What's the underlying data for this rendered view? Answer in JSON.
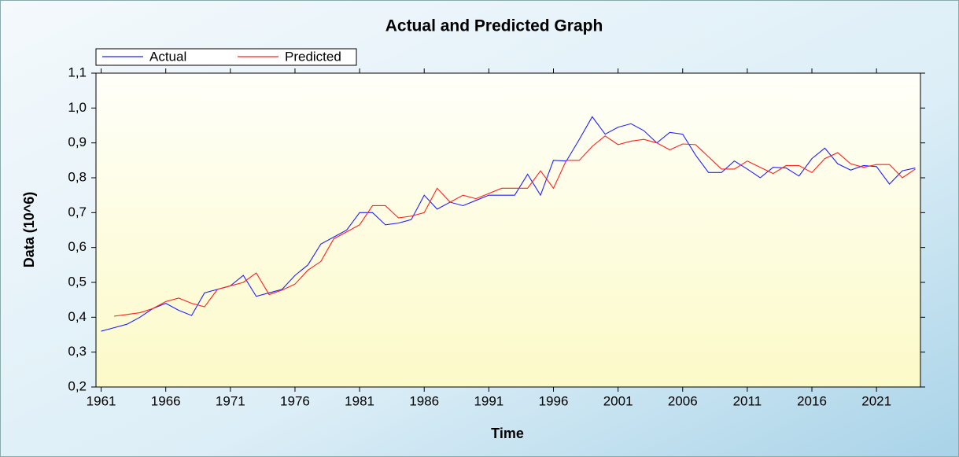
{
  "chart_data": {
    "type": "line",
    "title": "Actual and Predicted Graph",
    "x_label": "Time",
    "y_label": "Data (10^6)",
    "x": [
      1961,
      1962,
      1963,
      1964,
      1965,
      1966,
      1967,
      1968,
      1969,
      1970,
      1971,
      1972,
      1973,
      1974,
      1975,
      1976,
      1977,
      1978,
      1979,
      1980,
      1981,
      1982,
      1983,
      1984,
      1985,
      1986,
      1987,
      1988,
      1989,
      1990,
      1991,
      1992,
      1993,
      1994,
      1995,
      1996,
      1997,
      1998,
      1999,
      2000,
      2001,
      2002,
      2003,
      2004,
      2005,
      2006,
      2007,
      2008,
      2009,
      2010,
      2011,
      2012,
      2013,
      2014,
      2015,
      2016,
      2017,
      2018,
      2019,
      2020,
      2021,
      2022,
      2023,
      2024
    ],
    "series": [
      {
        "name": "Actual",
        "color": "#2020ff",
        "values": [
          0.36,
          0.37,
          0.38,
          0.4,
          0.425,
          0.44,
          0.42,
          0.405,
          0.47,
          0.48,
          0.49,
          0.52,
          0.46,
          0.47,
          0.48,
          0.52,
          0.55,
          0.61,
          0.63,
          0.65,
          0.7,
          0.7,
          0.665,
          0.67,
          0.68,
          0.75,
          0.71,
          0.73,
          0.72,
          0.735,
          0.75,
          0.75,
          0.75,
          0.81,
          0.75,
          0.85,
          0.848,
          0.91,
          0.975,
          0.925,
          0.945,
          0.955,
          0.935,
          0.9,
          0.93,
          0.925,
          0.865,
          0.815,
          0.815,
          0.848,
          0.825,
          0.8,
          0.83,
          0.828,
          0.805,
          0.855,
          0.885,
          0.84,
          0.822,
          0.835,
          0.832,
          0.782,
          0.82,
          0.828
        ]
      },
      {
        "name": "Predicted",
        "color": "#ff2020",
        "values": [
          null,
          0.403,
          0.408,
          0.413,
          0.425,
          0.445,
          0.455,
          0.44,
          0.43,
          0.48,
          0.49,
          0.5,
          0.527,
          0.465,
          0.478,
          0.495,
          0.535,
          0.56,
          0.625,
          0.645,
          0.665,
          0.72,
          0.72,
          0.685,
          0.69,
          0.7,
          0.77,
          0.73,
          0.75,
          0.74,
          0.755,
          0.77,
          0.77,
          0.77,
          0.82,
          0.77,
          0.85,
          0.85,
          0.89,
          0.92,
          0.895,
          0.905,
          0.91,
          0.9,
          0.88,
          0.897,
          0.895,
          0.86,
          0.825,
          0.825,
          0.848,
          0.83,
          0.812,
          0.835,
          0.835,
          0.815,
          0.855,
          0.872,
          0.84,
          0.83,
          0.838,
          0.838,
          0.8,
          0.825
        ]
      }
    ],
    "xlim": [
      1960.6,
      2024.4
    ],
    "xticks": [
      1961,
      1966,
      1971,
      1976,
      1981,
      1986,
      1991,
      1996,
      2001,
      2006,
      2011,
      2016,
      2021
    ],
    "ylim": [
      0.2,
      1.1
    ],
    "yticks": [
      {
        "value": 0.2,
        "label": "0,2"
      },
      {
        "value": 0.3,
        "label": "0,3"
      },
      {
        "value": 0.4,
        "label": "0,4"
      },
      {
        "value": 0.5,
        "label": "0,5"
      },
      {
        "value": 0.6,
        "label": "0,6"
      },
      {
        "value": 0.7,
        "label": "0,7"
      },
      {
        "value": 0.8,
        "label": "0,8"
      },
      {
        "value": 0.9,
        "label": "0,9"
      },
      {
        "value": 1.0,
        "label": "1,0"
      },
      {
        "value": 1.1,
        "label": "1,1"
      }
    ]
  }
}
